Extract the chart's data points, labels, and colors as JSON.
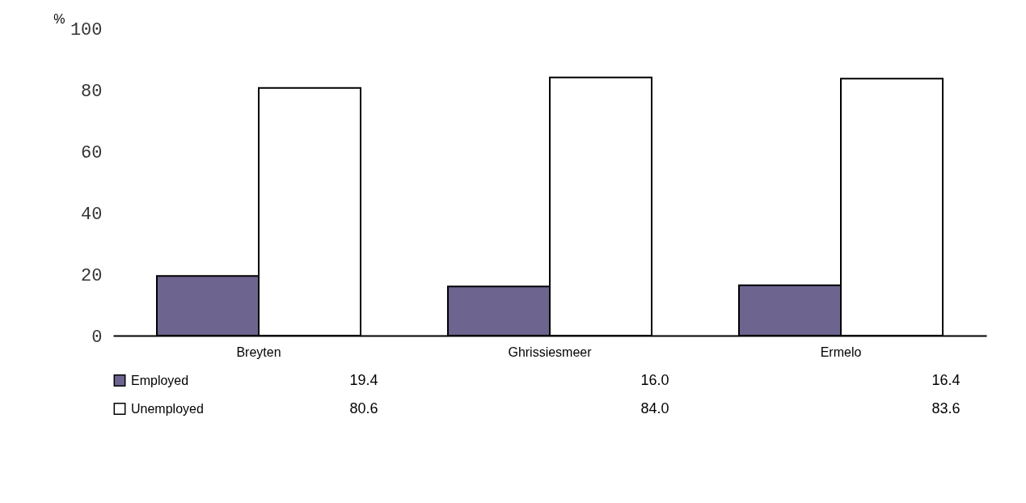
{
  "chart_data": {
    "type": "bar",
    "ylabel": "%",
    "categories": [
      "Breyten",
      "Ghrissiesmeer",
      "Ermelo"
    ],
    "series": [
      {
        "name": "Employed",
        "color": "#6e6490",
        "values": [
          19.4,
          16.0,
          16.4
        ],
        "value_labels": [
          "19.4",
          "16.0",
          "16.4"
        ]
      },
      {
        "name": "Unemployed",
        "color": "#ffffff",
        "values": [
          80.6,
          84.0,
          83.6
        ],
        "value_labels": [
          "80.6",
          "84.0",
          "83.6"
        ]
      }
    ],
    "ylim": [
      0,
      100
    ],
    "yticks": [
      0,
      20,
      40,
      60,
      80,
      100
    ],
    "grid": false,
    "legend": "bottom"
  }
}
